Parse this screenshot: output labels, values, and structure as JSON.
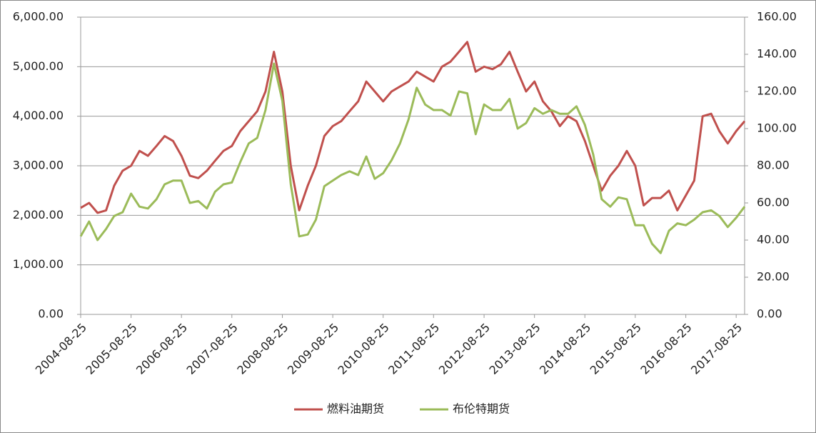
{
  "chart_data": {
    "type": "line",
    "x": [
      "2004-08-25",
      "2004-10-25",
      "2004-12-25",
      "2005-02-25",
      "2005-04-25",
      "2005-06-25",
      "2005-08-25",
      "2005-10-25",
      "2005-12-25",
      "2006-02-25",
      "2006-04-25",
      "2006-06-25",
      "2006-08-25",
      "2006-10-25",
      "2006-12-25",
      "2007-02-25",
      "2007-04-25",
      "2007-06-25",
      "2007-08-25",
      "2007-10-25",
      "2007-12-25",
      "2008-02-25",
      "2008-04-25",
      "2008-06-25",
      "2008-08-25",
      "2008-10-25",
      "2008-12-25",
      "2009-02-25",
      "2009-04-25",
      "2009-06-25",
      "2009-08-25",
      "2009-10-25",
      "2009-12-25",
      "2010-02-25",
      "2010-04-25",
      "2010-06-25",
      "2010-08-25",
      "2010-10-25",
      "2010-12-25",
      "2011-02-25",
      "2011-04-25",
      "2011-06-25",
      "2011-08-25",
      "2011-10-25",
      "2011-12-25",
      "2012-02-25",
      "2012-04-25",
      "2012-06-25",
      "2012-08-25",
      "2012-10-25",
      "2012-12-25",
      "2013-02-25",
      "2013-04-25",
      "2013-06-25",
      "2013-08-25",
      "2013-10-25",
      "2013-12-25",
      "2014-02-25",
      "2014-04-25",
      "2014-06-25",
      "2014-08-25",
      "2014-10-25",
      "2014-12-25",
      "2015-02-25",
      "2015-04-25",
      "2015-06-25",
      "2015-08-25",
      "2015-10-25",
      "2015-12-25",
      "2016-02-25",
      "2016-04-25",
      "2016-06-25",
      "2016-08-25",
      "2016-10-25",
      "2016-12-25",
      "2017-02-25",
      "2017-04-25",
      "2017-06-25",
      "2017-08-25",
      "2017-10-25"
    ],
    "series": [
      {
        "name": "燃料油期货",
        "color": "#c0504d",
        "values": [
          2150,
          2250,
          2050,
          2100,
          2600,
          2900,
          3000,
          3300,
          3200,
          3400,
          3600,
          3500,
          3200,
          2800,
          2750,
          2900,
          3100,
          3300,
          3400,
          3700,
          3900,
          4100,
          4500,
          5300,
          4500,
          3000,
          2100,
          2600,
          3000,
          3600,
          3800,
          3900,
          4100,
          4300,
          4700,
          4500,
          4300,
          4500,
          4600,
          4700,
          4900,
          4800,
          4700,
          5000,
          5100,
          5300,
          5500,
          4900,
          5000,
          4950,
          5050,
          5300,
          4900,
          4500,
          4700,
          4300,
          4100,
          3800,
          4000,
          3900,
          3500,
          3000,
          2500,
          2800,
          3000,
          3300,
          3000,
          2200,
          2350,
          2350,
          2500,
          2100,
          2400,
          2700,
          4000,
          4050,
          3700,
          3450,
          3700,
          3900
        ]
      },
      {
        "name": "布伦特期货",
        "color": "#9bbb59",
        "axis": "y2",
        "values": [
          42,
          50,
          40,
          46,
          53,
          55,
          65,
          58,
          57,
          62,
          70,
          72,
          72,
          60,
          61,
          57,
          66,
          70,
          71,
          82,
          92,
          95,
          110,
          135,
          115,
          70,
          42,
          43,
          51,
          69,
          72,
          75,
          77,
          75,
          85,
          73,
          76,
          83,
          92,
          105,
          122,
          113,
          110,
          110,
          107,
          120,
          119,
          97,
          113,
          110,
          110,
          116,
          100,
          103,
          111,
          108,
          110,
          108,
          108,
          112,
          102,
          86,
          62,
          58,
          63,
          62,
          48,
          48,
          38,
          33,
          45,
          49,
          48,
          51,
          55,
          56,
          53,
          47,
          52,
          58
        ]
      }
    ],
    "xlim": [
      "2004-08-25",
      "2017-10-25"
    ],
    "xticks": [
      "2004-08-25",
      "2005-08-25",
      "2006-08-25",
      "2007-08-25",
      "2008-08-25",
      "2009-08-25",
      "2010-08-25",
      "2011-08-25",
      "2012-08-25",
      "2013-08-25",
      "2014-08-25",
      "2015-08-25",
      "2016-08-25",
      "2017-08-25"
    ],
    "ylim": [
      0,
      6000
    ],
    "yticks": [
      {
        "value": 0,
        "label": "0.00"
      },
      {
        "value": 1000,
        "label": "1,000.00"
      },
      {
        "value": 2000,
        "label": "2,000.00"
      },
      {
        "value": 3000,
        "label": "3,000.00"
      },
      {
        "value": 4000,
        "label": "4,000.00"
      },
      {
        "value": 5000,
        "label": "5,000.00"
      },
      {
        "value": 6000,
        "label": "6,000.00"
      }
    ],
    "y2lim": [
      0,
      160
    ],
    "y2ticks": [
      {
        "value": 0,
        "label": "0.00"
      },
      {
        "value": 20,
        "label": "20.00"
      },
      {
        "value": 40,
        "label": "40.00"
      },
      {
        "value": 60,
        "label": "60.00"
      },
      {
        "value": 80,
        "label": "80.00"
      },
      {
        "value": 100,
        "label": "100.00"
      },
      {
        "value": 120,
        "label": "120.00"
      },
      {
        "value": 140,
        "label": "140.00"
      },
      {
        "value": 160,
        "label": "160.00"
      }
    ],
    "grid": true,
    "legend": "bottom"
  }
}
